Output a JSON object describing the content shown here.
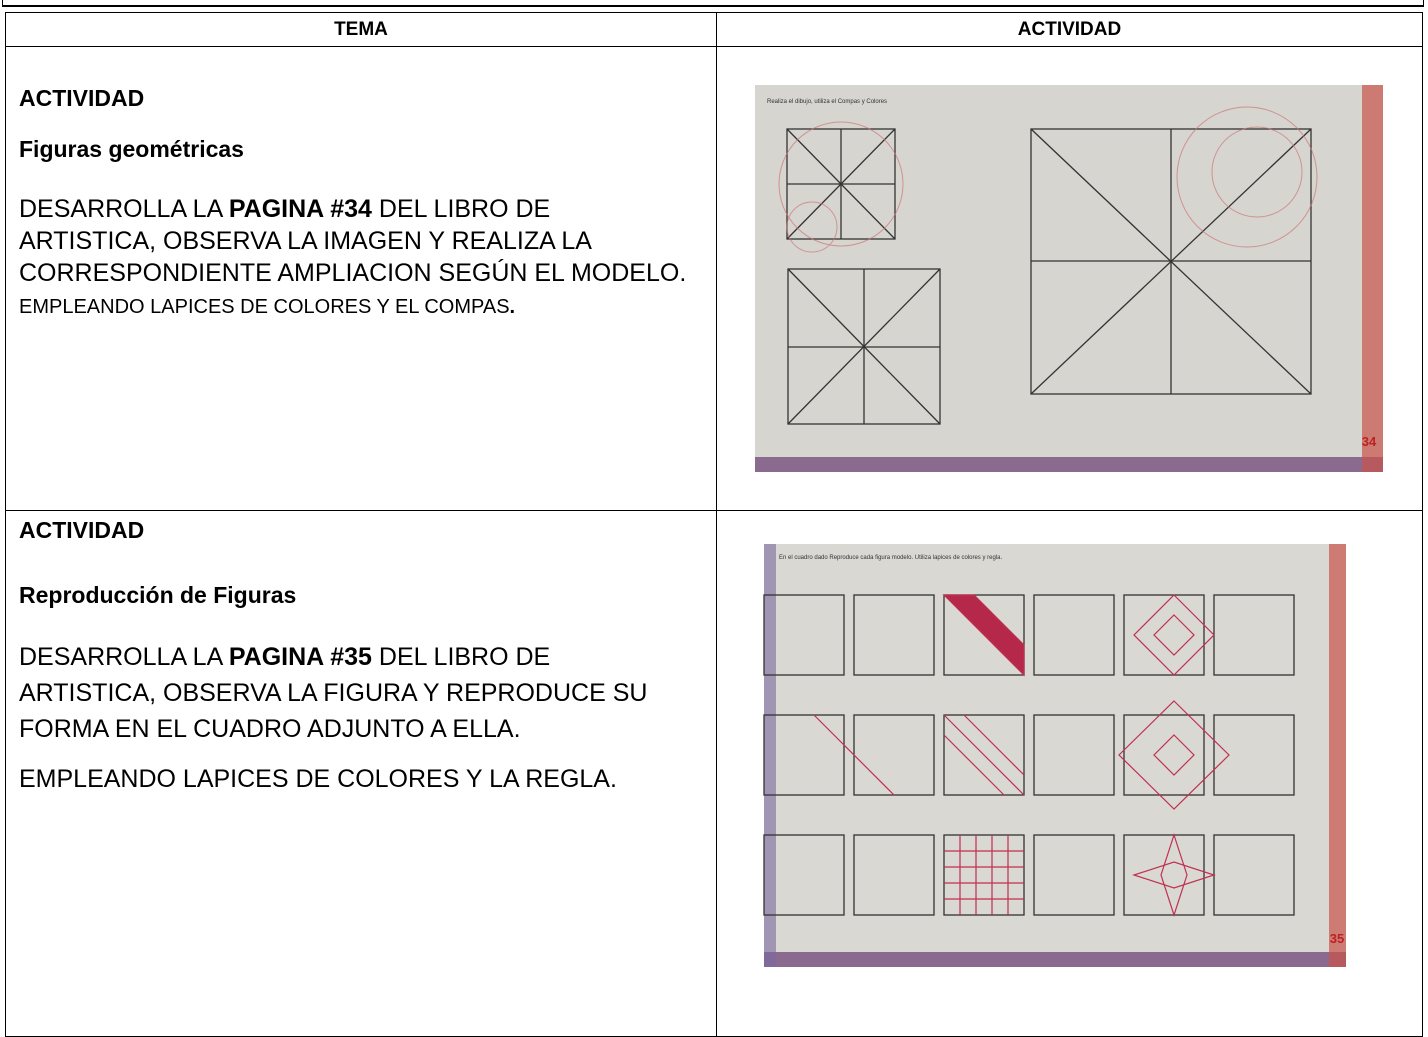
{
  "header": {
    "columns": [
      "TEMA",
      "ACTIVIDAD"
    ]
  },
  "rows": [
    {
      "label": "ACTIVIDAD",
      "title": "Figuras geométricas",
      "body": [
        "DESARROLLA LA ",
        "PAGINA #34",
        " DEL LIBRO DE ARTISTICA, OBSERVA LA IMAGEN Y REALIZA LA CORRESPONDIENTE AMPLIACION SEGÚN EL MODELO."
      ],
      "note": [
        "EMPLEANDO LAPICES DE COLORES Y EL COMPAS",
        "."
      ],
      "image": {
        "caption": "Realiza el dibujo, utiliza el Compas y Colores",
        "page": "34"
      }
    },
    {
      "label": "ACTIVIDAD",
      "title": "Reproducción de Figuras",
      "body": [
        "DESARROLLA LA ",
        "PAGINA #35",
        " DEL LIBRO DE ARTISTICA, OBSERVA LA FIGURA Y REPRODUCE SU FORMA EN EL CUADRO ADJUNTO A ELLA."
      ],
      "note": [
        "EMPLEANDO LAPICES DE COLORES Y LA REGLA."
      ],
      "image": {
        "caption": "En el cuadro dado Reproduce cada figura modelo. Utiliza lapices de colores y regla.",
        "page": "35"
      }
    }
  ]
}
